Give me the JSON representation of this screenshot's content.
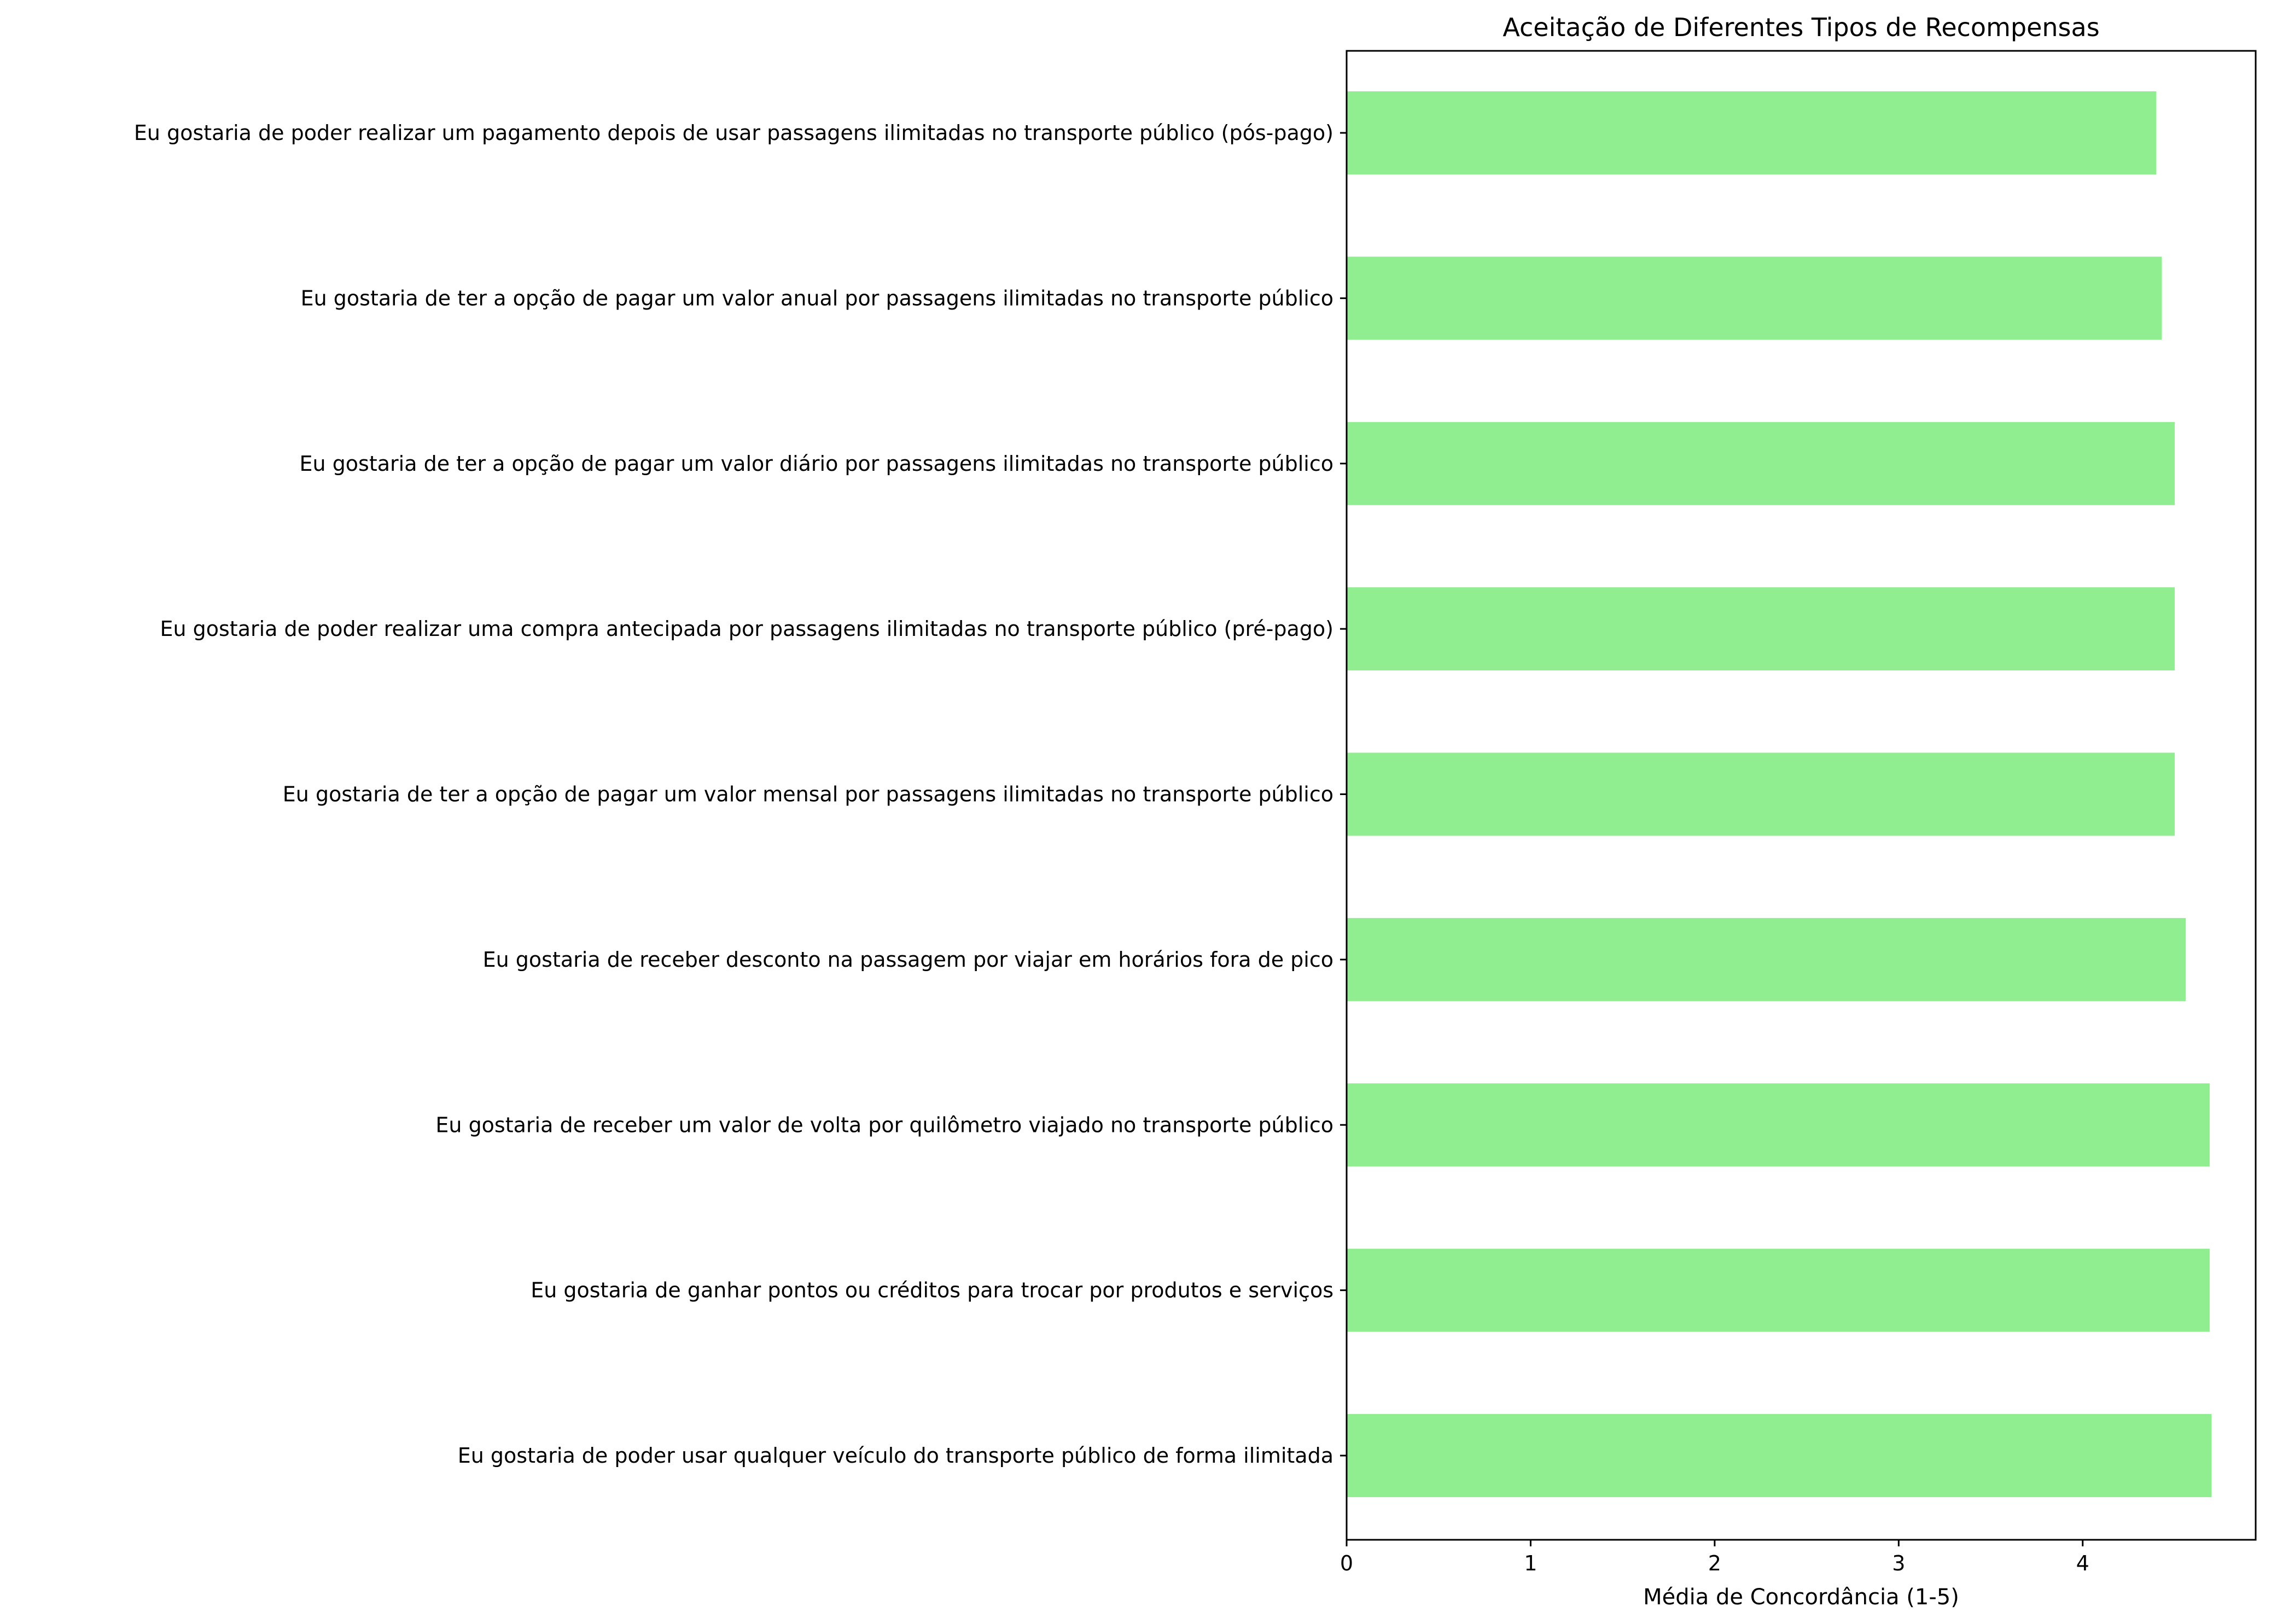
{
  "chart_data": {
    "type": "bar",
    "orientation": "horizontal",
    "title": "Aceitação de Diferentes Tipos de Recompensas",
    "xlabel": "Média de Concordância (1-5)",
    "ylabel": "",
    "xlim": [
      0,
      4.94
    ],
    "xticks": [
      0,
      1,
      2,
      3,
      4
    ],
    "grid": false,
    "legend": "none",
    "bar_color": "#90ee90",
    "categories": [
      "Eu gostaria de poder realizar um pagamento depois de usar passagens ilimitadas no transporte público (pós-pago)",
      "Eu gostaria de ter a opção de pagar um valor anual por passagens ilimitadas no transporte público",
      "Eu gostaria de ter a opção de pagar um valor diário por passagens ilimitadas no transporte público",
      "Eu gostaria de poder realizar uma compra antecipada por passagens ilimitadas no transporte público (pré-pago)",
      "Eu gostaria de ter a opção de pagar um valor mensal por passagens ilimitadas no transporte público",
      "Eu gostaria de receber desconto na passagem por viajar em horários fora de pico",
      "Eu gostaria de receber um valor de volta por quilômetro viajado no transporte público ",
      "Eu gostaria de ganhar pontos ou créditos para trocar por produtos e serviços",
      "Eu gostaria de poder usar qualquer veículo do transporte público de forma ilimitada"
    ],
    "values": [
      4.4,
      4.43,
      4.5,
      4.5,
      4.5,
      4.56,
      4.69,
      4.69,
      4.7
    ]
  }
}
